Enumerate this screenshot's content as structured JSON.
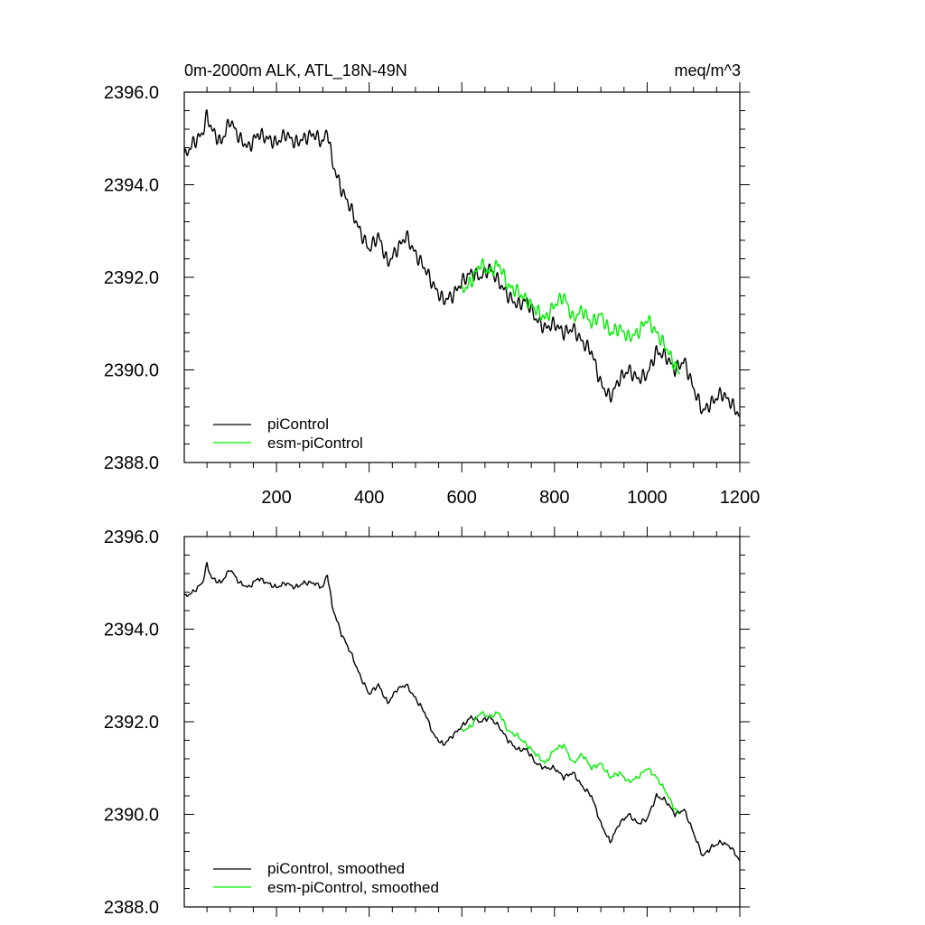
{
  "colors": {
    "piControl": "#000000",
    "esm_piControl": "#00ee00",
    "frame": "#000000"
  },
  "chart_data": [
    {
      "type": "line",
      "title_left": "0m-2000m ALK, ATL_18N-49N",
      "title_right": "meq/m^3",
      "xlim": [
        1,
        1200
      ],
      "ylim": [
        2388.0,
        2396.0
      ],
      "y_ticks": [
        2388.0,
        2390.0,
        2392.0,
        2394.0,
        2396.0
      ],
      "y_tick_labels": [
        "2388.0",
        "2390.0",
        "2392.0",
        "2394.0",
        "2396.0"
      ],
      "x_ticks": [
        200,
        400,
        600,
        800,
        1000,
        1200
      ],
      "x_tick_labels": [
        "200",
        "400",
        "600",
        "800",
        "1000",
        "1200"
      ],
      "legend_position": "bottom-left",
      "smoothed": false,
      "series": [
        {
          "name": "piControl",
          "color": "#000000",
          "x": [
            1,
            20,
            40,
            50,
            60,
            80,
            100,
            120,
            140,
            160,
            180,
            200,
            220,
            240,
            260,
            280,
            300,
            310,
            320,
            340,
            360,
            380,
            400,
            420,
            440,
            460,
            480,
            500,
            520,
            540,
            560,
            580,
            600,
            620,
            640,
            660,
            680,
            700,
            720,
            740,
            760,
            780,
            800,
            820,
            840,
            860,
            880,
            900,
            920,
            940,
            960,
            980,
            1000,
            1020,
            1040,
            1060,
            1080,
            1100,
            1120,
            1140,
            1160,
            1180,
            1200
          ],
          "y": [
            2394.6,
            2394.9,
            2395.1,
            2395.5,
            2395.2,
            2394.9,
            2395.4,
            2395.0,
            2394.8,
            2395.1,
            2395.0,
            2394.9,
            2395.1,
            2394.9,
            2395.0,
            2395.1,
            2394.9,
            2395.2,
            2394.5,
            2393.9,
            2393.5,
            2393.0,
            2392.6,
            2392.9,
            2392.3,
            2392.6,
            2392.9,
            2392.5,
            2392.2,
            2391.8,
            2391.5,
            2391.6,
            2391.9,
            2392.1,
            2392.0,
            2392.2,
            2391.9,
            2391.6,
            2391.4,
            2391.5,
            2391.1,
            2390.9,
            2391.0,
            2390.8,
            2390.9,
            2390.6,
            2390.4,
            2389.7,
            2389.4,
            2389.8,
            2390.0,
            2389.8,
            2389.9,
            2390.4,
            2390.3,
            2390.0,
            2390.2,
            2389.6,
            2389.1,
            2389.3,
            2389.5,
            2389.3,
            2389.0
          ]
        },
        {
          "name": "esm-piControl",
          "color": "#00ee00",
          "x": [
            600,
            620,
            640,
            660,
            680,
            700,
            720,
            740,
            760,
            780,
            800,
            820,
            840,
            860,
            880,
            900,
            920,
            940,
            960,
            980,
            1000,
            1020,
            1040,
            1060,
            1070
          ],
          "y": [
            2391.7,
            2391.9,
            2392.3,
            2392.1,
            2392.3,
            2391.8,
            2391.7,
            2391.5,
            2391.3,
            2391.1,
            2391.4,
            2391.6,
            2391.1,
            2391.3,
            2391.0,
            2391.2,
            2390.8,
            2390.9,
            2390.7,
            2390.8,
            2391.1,
            2390.8,
            2390.5,
            2390.1,
            2389.9
          ]
        }
      ]
    },
    {
      "type": "line",
      "xlim": [
        1,
        1200
      ],
      "ylim": [
        2388.0,
        2396.0
      ],
      "y_ticks": [
        2388.0,
        2390.0,
        2392.0,
        2394.0,
        2396.0
      ],
      "y_tick_labels": [
        "2388.0",
        "2390.0",
        "2392.0",
        "2394.0",
        "2396.0"
      ],
      "x_ticks": [
        200,
        400,
        600,
        800,
        1000,
        1200
      ],
      "legend_position": "bottom-left",
      "smoothed": true,
      "series": [
        {
          "name": "piControl, smoothed",
          "color": "#000000",
          "x": [
            1,
            20,
            40,
            50,
            60,
            80,
            100,
            120,
            140,
            160,
            180,
            200,
            220,
            240,
            260,
            280,
            300,
            310,
            320,
            340,
            360,
            380,
            400,
            420,
            440,
            460,
            480,
            500,
            520,
            540,
            560,
            580,
            600,
            620,
            640,
            660,
            680,
            700,
            720,
            740,
            760,
            780,
            800,
            820,
            840,
            860,
            880,
            900,
            920,
            940,
            960,
            980,
            1000,
            1020,
            1040,
            1060,
            1080,
            1100,
            1120,
            1140,
            1160,
            1180,
            1200
          ],
          "y": [
            2394.7,
            2394.8,
            2395.0,
            2395.4,
            2395.1,
            2395.0,
            2395.3,
            2395.0,
            2394.9,
            2395.1,
            2395.0,
            2394.9,
            2395.0,
            2394.9,
            2395.0,
            2395.0,
            2394.9,
            2395.2,
            2394.5,
            2393.9,
            2393.5,
            2393.0,
            2392.6,
            2392.8,
            2392.4,
            2392.7,
            2392.8,
            2392.5,
            2392.2,
            2391.7,
            2391.5,
            2391.7,
            2391.9,
            2392.1,
            2392.0,
            2392.1,
            2391.9,
            2391.6,
            2391.4,
            2391.4,
            2391.1,
            2391.0,
            2391.0,
            2390.8,
            2390.9,
            2390.6,
            2390.4,
            2389.8,
            2389.4,
            2389.8,
            2390.0,
            2389.8,
            2389.9,
            2390.4,
            2390.3,
            2390.0,
            2390.1,
            2389.6,
            2389.1,
            2389.3,
            2389.4,
            2389.3,
            2389.0
          ]
        },
        {
          "name": "esm-piControl, smoothed",
          "color": "#00ee00",
          "x": [
            600,
            620,
            640,
            660,
            680,
            700,
            720,
            740,
            760,
            780,
            800,
            820,
            840,
            860,
            880,
            900,
            920,
            940,
            960,
            980,
            1000,
            1020,
            1040,
            1060,
            1070
          ],
          "y": [
            2391.8,
            2391.9,
            2392.2,
            2392.1,
            2392.2,
            2391.8,
            2391.7,
            2391.5,
            2391.3,
            2391.1,
            2391.4,
            2391.5,
            2391.1,
            2391.3,
            2391.0,
            2391.1,
            2390.8,
            2390.9,
            2390.7,
            2390.8,
            2391.0,
            2390.8,
            2390.5,
            2390.1,
            2390.0
          ]
        }
      ]
    }
  ]
}
